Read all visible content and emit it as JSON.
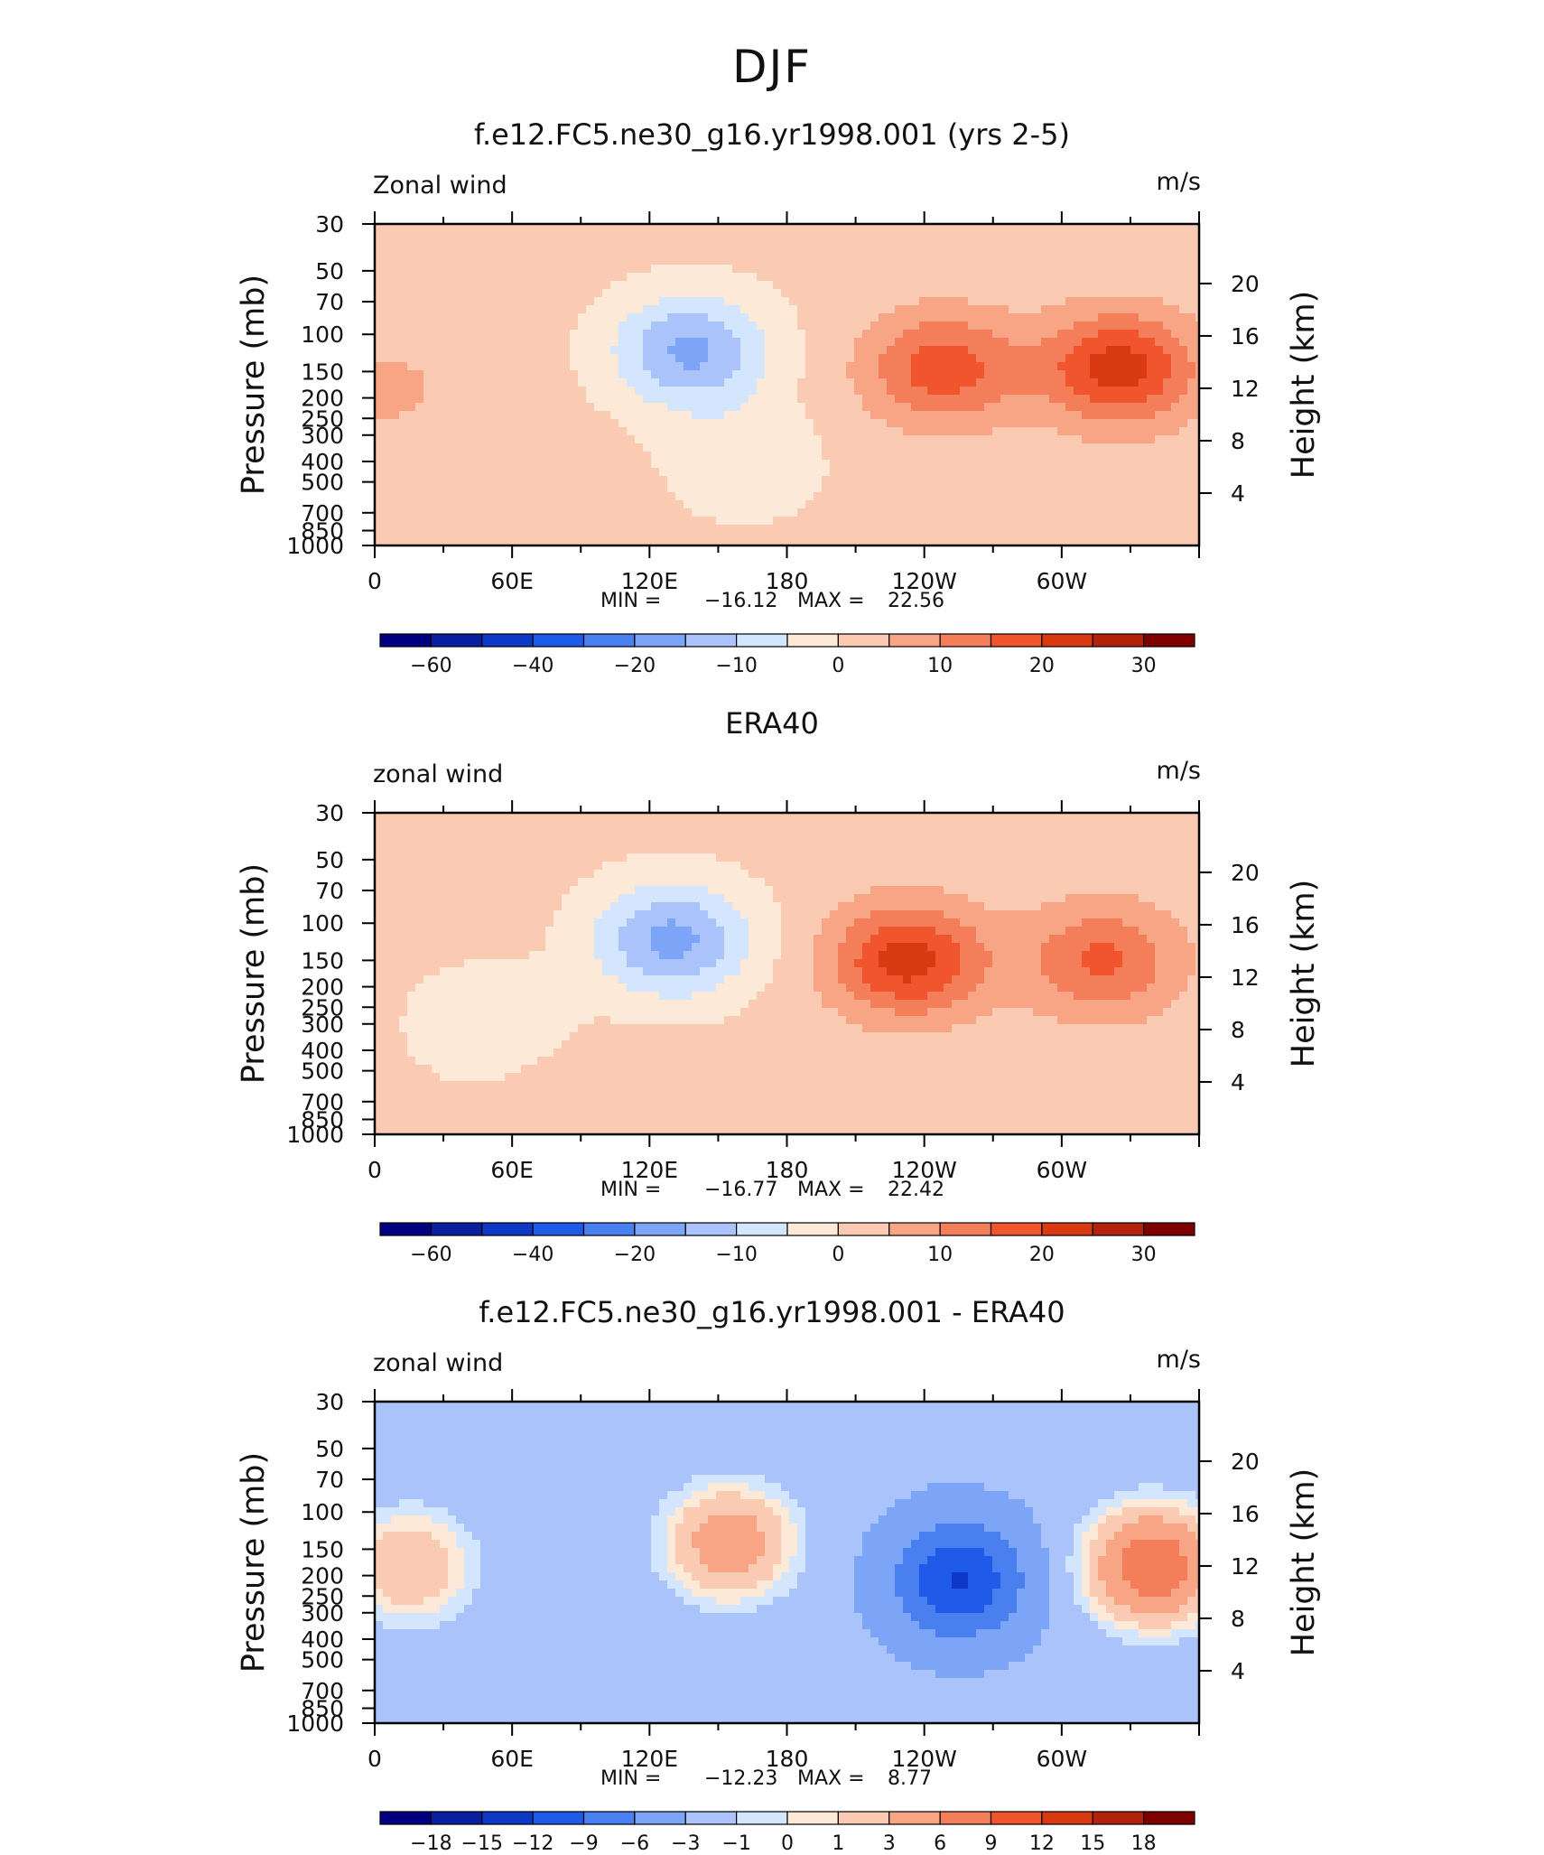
{
  "page_title": "DJF",
  "chart_data": [
    {
      "type": "heatmap",
      "title": "f.e12.FC5.ne30_g16.yr1998.001 (yrs 2-5)",
      "variable_label": "Zonal wind",
      "units": "m/s",
      "ylabel": "Pressure (mb)",
      "ylabel_right": "Height (km)",
      "xlim": [
        0,
        360
      ],
      "x_tick_labels": [
        {
          "lon": 0,
          "label": "0"
        },
        {
          "lon": 60,
          "label": "60E"
        },
        {
          "lon": 120,
          "label": "120E"
        },
        {
          "lon": 180,
          "label": "180"
        },
        {
          "lon": 240,
          "label": "120W"
        },
        {
          "lon": 300,
          "label": "60W"
        }
      ],
      "y_ticks_pressure": [
        30,
        50,
        70,
        100,
        150,
        200,
        250,
        300,
        400,
        500,
        700,
        850,
        1000
      ],
      "y_ticks_height_km": [
        4,
        8,
        12,
        16,
        20
      ],
      "stats": {
        "min_label": "MIN  =",
        "min": "−16.12",
        "max_label": "MAX  =",
        "max": "22.56"
      },
      "colorbar": {
        "colors": [
          "#000080",
          "#0a1fa0",
          "#0e39c6",
          "#1f5ae8",
          "#4a7fef",
          "#7da5f7",
          "#aac4fb",
          "#d4e6fd",
          "#fde9d8",
          "#fbcab3",
          "#f8a585",
          "#f47e5a",
          "#f0552e",
          "#d93a12",
          "#b3220a",
          "#7f0000"
        ],
        "labels": [
          "−60",
          "−40",
          "−20",
          "−10",
          "0",
          "10",
          "20",
          "30"
        ],
        "label_boundaries": [
          1,
          3,
          5,
          7,
          9,
          11,
          13,
          15
        ]
      },
      "features": [
        {
          "lon": 138,
          "p": 120,
          "value": -16.1
        },
        {
          "lon": 160,
          "p": 400,
          "value": -4
        },
        {
          "lon": 248,
          "p": 145,
          "value": 18
        },
        {
          "lon": 325,
          "p": 145,
          "value": 22.6
        },
        {
          "lon": 85,
          "p": 750,
          "value": 4
        },
        {
          "lon": 5,
          "p": 180,
          "value": 6
        }
      ]
    },
    {
      "type": "heatmap",
      "title": "ERA40",
      "variable_label": "zonal wind",
      "units": "m/s",
      "ylabel": "Pressure (mb)",
      "ylabel_right": "Height (km)",
      "xlim": [
        0,
        360
      ],
      "x_tick_labels": [
        {
          "lon": 0,
          "label": "0"
        },
        {
          "lon": 60,
          "label": "60E"
        },
        {
          "lon": 120,
          "label": "120E"
        },
        {
          "lon": 180,
          "label": "180"
        },
        {
          "lon": 240,
          "label": "120W"
        },
        {
          "lon": 300,
          "label": "60W"
        }
      ],
      "y_ticks_pressure": [
        30,
        50,
        70,
        100,
        150,
        200,
        250,
        300,
        400,
        500,
        700,
        850,
        1000
      ],
      "y_ticks_height_km": [
        4,
        8,
        12,
        16,
        20
      ],
      "stats": {
        "min_label": "MIN  =",
        "min": "−16.77",
        "max_label": "MAX  =",
        "max": "22.42"
      },
      "colorbar": {
        "colors": [
          "#000080",
          "#0a1fa0",
          "#0e39c6",
          "#1f5ae8",
          "#4a7fef",
          "#7da5f7",
          "#aac4fb",
          "#d4e6fd",
          "#fde9d8",
          "#fbcab3",
          "#f8a585",
          "#f47e5a",
          "#f0552e",
          "#d93a12",
          "#b3220a",
          "#7f0000"
        ],
        "labels": [
          "−60",
          "−40",
          "−20",
          "−10",
          "0",
          "10",
          "20",
          "30"
        ],
        "label_boundaries": [
          1,
          3,
          5,
          7,
          9,
          11,
          13,
          15
        ]
      },
      "features": [
        {
          "lon": 130,
          "p": 120,
          "value": -16.8
        },
        {
          "lon": 50,
          "p": 300,
          "value": -4
        },
        {
          "lon": 233,
          "p": 150,
          "value": 22.4
        },
        {
          "lon": 318,
          "p": 150,
          "value": 16
        },
        {
          "lon": 90,
          "p": 750,
          "value": 4
        }
      ]
    },
    {
      "type": "heatmap",
      "title": "f.e12.FC5.ne30_g16.yr1998.001 - ERA40",
      "variable_label": "zonal wind",
      "units": "m/s",
      "ylabel": "Pressure (mb)",
      "ylabel_right": "Height (km)",
      "xlim": [
        0,
        360
      ],
      "x_tick_labels": [
        {
          "lon": 0,
          "label": "0"
        },
        {
          "lon": 60,
          "label": "60E"
        },
        {
          "lon": 120,
          "label": "120E"
        },
        {
          "lon": 180,
          "label": "180"
        },
        {
          "lon": 240,
          "label": "120W"
        },
        {
          "lon": 300,
          "label": "60W"
        }
      ],
      "y_ticks_pressure": [
        30,
        50,
        70,
        100,
        150,
        200,
        250,
        300,
        400,
        500,
        700,
        850,
        1000
      ],
      "y_ticks_height_km": [
        4,
        8,
        12,
        16,
        20
      ],
      "stats": {
        "min_label": "MIN  =",
        "min": "−12.23",
        "max_label": "MAX  =",
        "max": "8.77"
      },
      "colorbar": {
        "colors": [
          "#000080",
          "#0a1fa0",
          "#0e39c6",
          "#1f5ae8",
          "#4a7fef",
          "#7da5f7",
          "#aac4fb",
          "#d4e6fd",
          "#fde9d8",
          "#fbcab3",
          "#f8a585",
          "#f47e5a",
          "#f0552e",
          "#d93a12",
          "#b3220a",
          "#7f0000"
        ],
        "labels": [
          "−18",
          "−15",
          "−12",
          "−9",
          "−6",
          "−3",
          "−1",
          "0",
          "1",
          "3",
          "6",
          "9",
          "12",
          "15",
          "18"
        ],
        "label_boundaries": [
          1,
          2,
          3,
          4,
          5,
          6,
          7,
          8,
          9,
          10,
          11,
          12,
          13,
          14,
          15
        ]
      },
      "features": [
        {
          "lon": 255,
          "p": 210,
          "value": -12.2
        },
        {
          "lon": 155,
          "p": 140,
          "value": 5
        },
        {
          "lon": 340,
          "p": 180,
          "value": 8.8
        },
        {
          "lon": 15,
          "p": 180,
          "value": 3
        }
      ]
    }
  ]
}
